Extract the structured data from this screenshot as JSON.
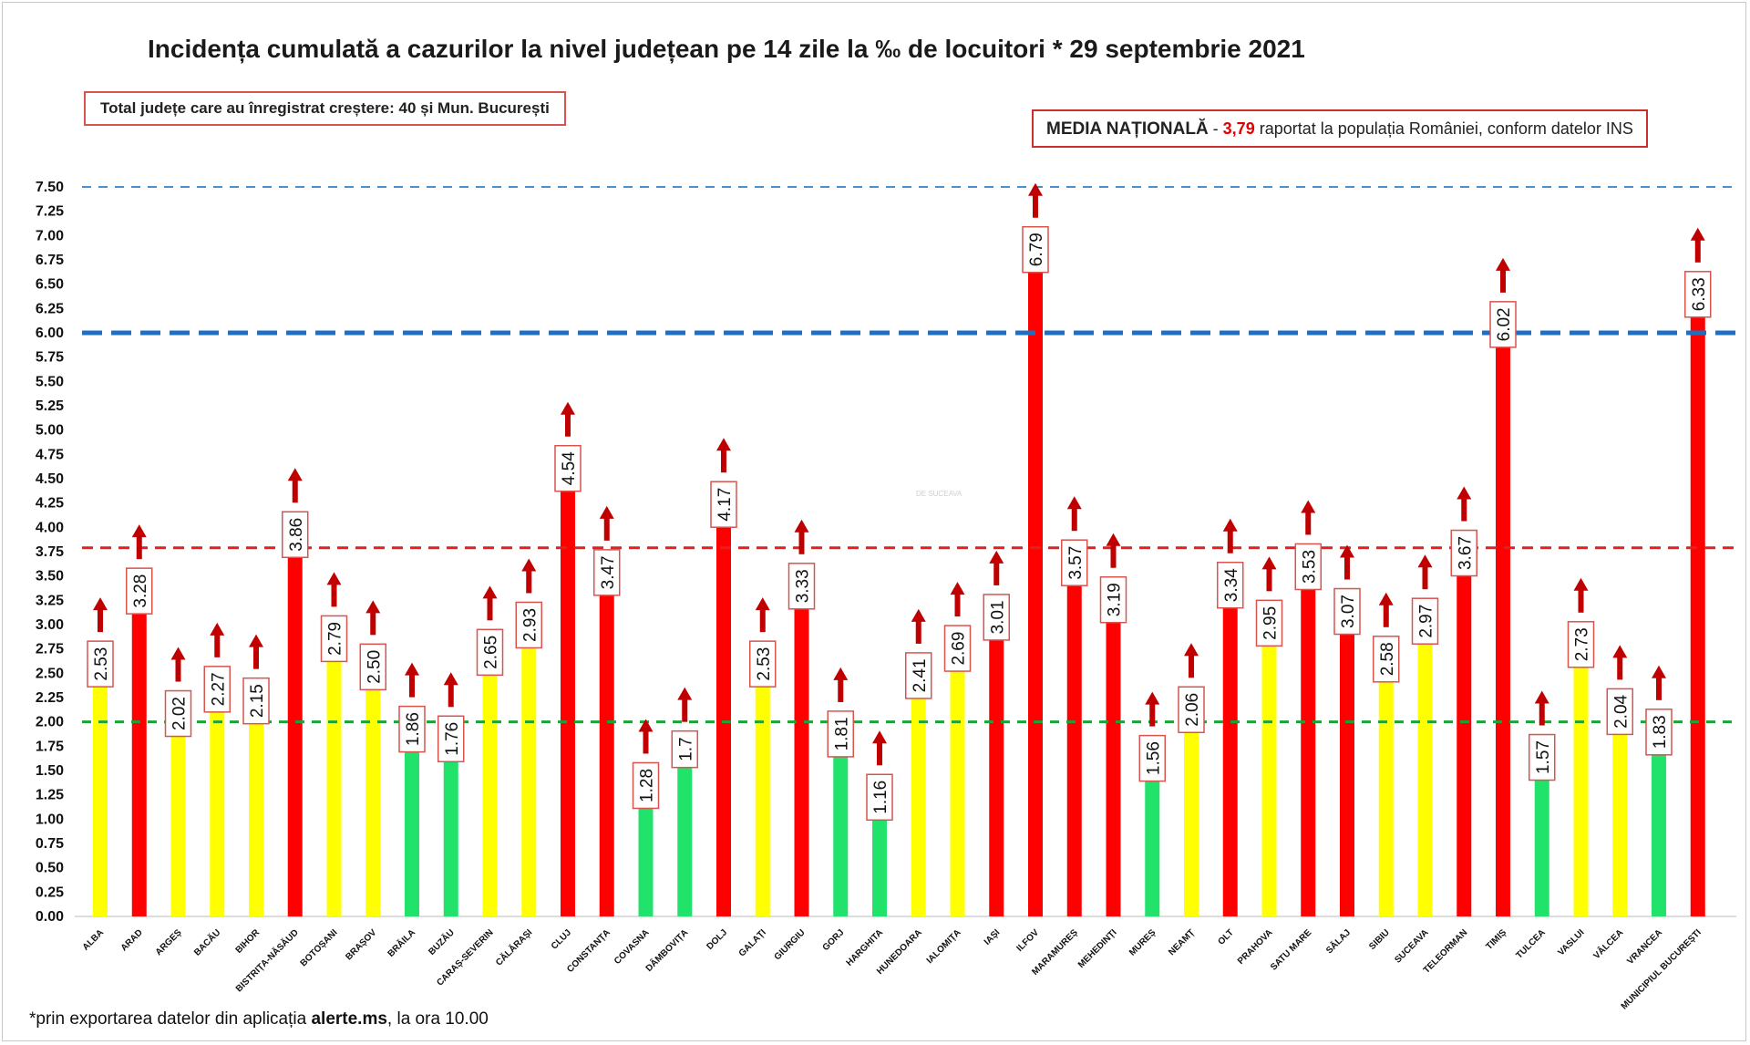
{
  "title": "Incidența cumulată a cazurilor la nivel județean pe 14 zile la ‰ de locuitori * 29 septembrie 2021",
  "note": "Total județe care au înregistrat creștere:  40 și Mun. București",
  "media": {
    "label": "MEDIA NAȚIONALĂ",
    "dash": " - ",
    "value": "3,79",
    "text": " raportat la populația României, conform datelor INS"
  },
  "watermark": "DE SUCEAVA",
  "footnote": {
    "prefix": "*prin exportarea datelor din aplicația ",
    "bold": "alerte.ms",
    "suffix": ", la ora 10.00"
  },
  "colors": {
    "yellow": "#ffff00",
    "red": "#ff0000",
    "green": "#21e36b",
    "arrow": "#c00000",
    "line_green": "#1aa33a",
    "line_red": "#e32020",
    "line_blue": "#1f6fbf",
    "line_lightblue": "#4a90d0"
  },
  "chart_data": {
    "type": "bar",
    "title": "Incidența cumulată a cazurilor la nivel județean pe 14 zile la ‰ de locuitori * 29 septembrie 2021",
    "xlabel": "",
    "ylabel": "",
    "ylim": [
      0,
      7.5
    ],
    "yticks": [
      "0.00",
      "0.25",
      "0.50",
      "0.75",
      "1.00",
      "1.25",
      "1.50",
      "1.75",
      "2.00",
      "2.25",
      "2.50",
      "2.75",
      "3.00",
      "3.25",
      "3.50",
      "3.75",
      "4.00",
      "4.25",
      "4.50",
      "4.75",
      "5.00",
      "5.25",
      "5.50",
      "5.75",
      "6.00",
      "6.25",
      "6.50",
      "6.75",
      "7.00",
      "7.25",
      "7.50"
    ],
    "grid": false,
    "legend": "none",
    "reference_lines": [
      {
        "value": 2.0,
        "color": "green",
        "style": "dashed"
      },
      {
        "value": 3.79,
        "color": "red",
        "style": "dashed"
      },
      {
        "value": 6.0,
        "color": "blue",
        "style": "dashed-thick"
      },
      {
        "value": 7.5,
        "color": "lightblue",
        "style": "dashed"
      }
    ],
    "categories": [
      "ALBA",
      "ARAD",
      "ARGEȘ",
      "BACĂU",
      "BIHOR",
      "BISTRIȚA-NĂSĂUD",
      "BOTOȘANI",
      "BRAȘOV",
      "BRĂILA",
      "BUZĂU",
      "CARAȘ-SEVERIN",
      "CĂLĂRAȘI",
      "CLUJ",
      "CONSTANȚA",
      "COVASNA",
      "DÂMBOVIȚA",
      "DOLJ",
      "GALAȚI",
      "GIURGIU",
      "GORJ",
      "HARGHITA",
      "HUNEDOARA",
      "IALOMIȚA",
      "IAȘI",
      "ILFOV",
      "MARAMUREȘ",
      "MEHEDINȚI",
      "MUREȘ",
      "NEAMȚ",
      "OLT",
      "PRAHOVA",
      "SATU MARE",
      "SĂLAJ",
      "SIBIU",
      "SUCEAVA",
      "TELEORMAN",
      "TIMIȘ",
      "TULCEA",
      "VASLUI",
      "VÂLCEA",
      "VRANCEA",
      "MUNICIPIUL BUCUREȘTI"
    ],
    "values": [
      2.53,
      3.28,
      2.02,
      2.27,
      2.15,
      3.86,
      2.79,
      2.5,
      1.86,
      1.76,
      2.65,
      2.93,
      4.54,
      3.47,
      1.28,
      1.7,
      4.17,
      2.53,
      3.33,
      1.81,
      1.16,
      2.41,
      2.69,
      3.01,
      6.79,
      3.57,
      3.19,
      1.56,
      2.06,
      3.34,
      2.95,
      3.53,
      3.07,
      2.58,
      2.97,
      3.67,
      6.02,
      1.57,
      2.73,
      2.04,
      1.83,
      6.33
    ],
    "labels": [
      "2.53",
      "3.28",
      "2.02",
      "2.27",
      "2.15",
      "3.86",
      "2.79",
      "2.50",
      "1.86",
      "1.76",
      "2.65",
      "2.93",
      "4.54",
      "3.47",
      "1.28",
      "1.7",
      "4.17",
      "2.53",
      "3.33",
      "1.81",
      "1.16",
      "2.41",
      "2.69",
      "3.01",
      "6.79",
      "3.57",
      "3.19",
      "1.56",
      "2.06",
      "3.34",
      "2.95",
      "3.53",
      "3.07",
      "2.58",
      "2.97",
      "3.67",
      "6.02",
      "1.57",
      "2.73",
      "2.04",
      "1.83",
      "6.33"
    ],
    "bar_colors": [
      "yellow",
      "red",
      "yellow",
      "yellow",
      "yellow",
      "red",
      "yellow",
      "yellow",
      "green",
      "green",
      "yellow",
      "yellow",
      "red",
      "red",
      "green",
      "green",
      "red",
      "yellow",
      "red",
      "green",
      "green",
      "yellow",
      "yellow",
      "red",
      "red",
      "red",
      "red",
      "green",
      "yellow",
      "red",
      "yellow",
      "red",
      "red",
      "yellow",
      "yellow",
      "red",
      "red",
      "green",
      "yellow",
      "yellow",
      "green",
      "red"
    ],
    "trend": [
      "up",
      "up",
      "up",
      "up",
      "up",
      "up",
      "up",
      "up",
      "up",
      "up",
      "up",
      "up",
      "up",
      "up",
      "up",
      "up",
      "up",
      "up",
      "up",
      "up",
      "up",
      "up",
      "up",
      "up",
      "up",
      "up",
      "up",
      "up",
      "up",
      "up",
      "up",
      "up",
      "up",
      "up",
      "up",
      "up",
      "up",
      "up",
      "up",
      "up",
      "up",
      "up"
    ]
  }
}
